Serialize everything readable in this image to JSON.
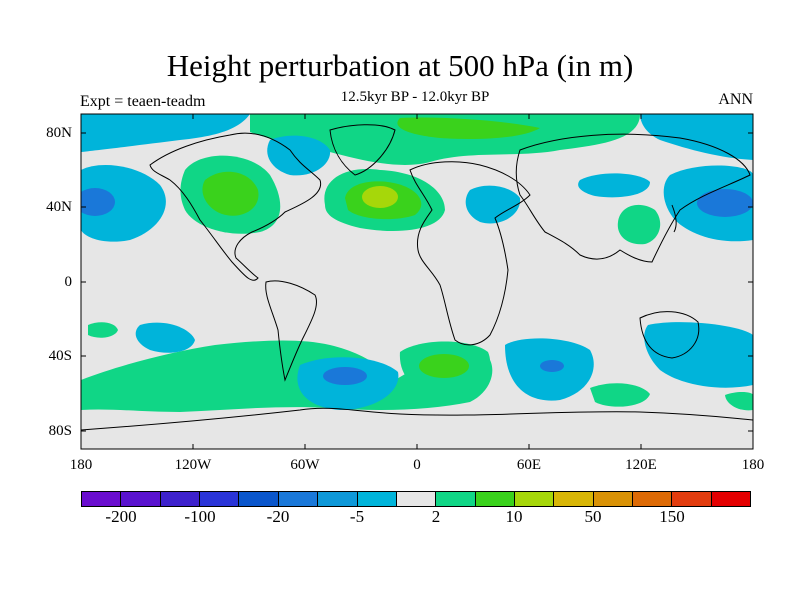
{
  "title": "Height perturbation at 500 hPa (in m)",
  "subtitle": "12.5kyr BP - 12.0kyr BP",
  "left_label": "Expt = teaen-teadm",
  "right_label": "ANN",
  "y_axis": {
    "ticks": [
      "80N",
      "40N",
      "0",
      "40S",
      "80S"
    ]
  },
  "x_axis": {
    "ticks": [
      "180",
      "120W",
      "60W",
      "0",
      "60E",
      "120E",
      "180"
    ]
  },
  "colorbar": {
    "colors": [
      "#6a0dcf",
      "#5a13cf",
      "#3e22cd",
      "#2a34d8",
      "#0a56cc",
      "#1a78d9",
      "#0e98d8",
      "#00b4da",
      "#e6e6e6",
      "#10d686",
      "#3ad21c",
      "#a6d70a",
      "#d8b607",
      "#d99206",
      "#dd6a05",
      "#e23c0e",
      "#e40001"
    ],
    "labels": [
      "-200",
      "-100",
      "-20",
      "-5",
      "2",
      "10",
      "50",
      "150"
    ]
  }
}
